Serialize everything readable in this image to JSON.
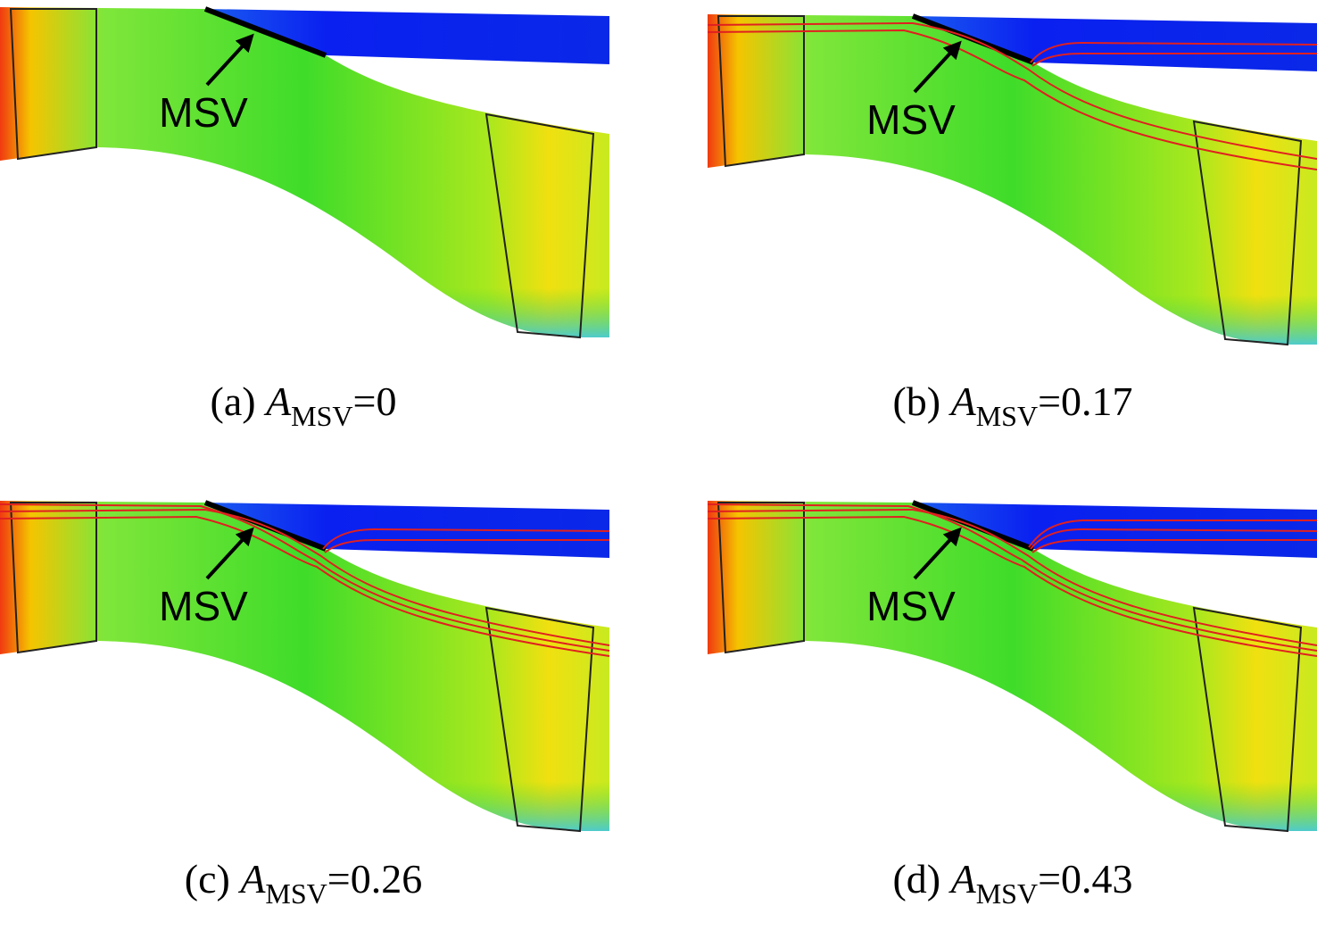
{
  "panels": [
    {
      "caption": {
        "prefix": "(a) ",
        "symbol": "A",
        "subscript": "MSV",
        "suffix": "=0"
      },
      "annotation": "MSV"
    },
    {
      "caption": {
        "prefix": "(b) ",
        "symbol": "A",
        "subscript": "MSV",
        "suffix": "=0.17"
      },
      "annotation": "MSV"
    },
    {
      "caption": {
        "prefix": "(c) ",
        "symbol": "A",
        "subscript": "MSV",
        "suffix": "=0.26"
      },
      "annotation": "MSV"
    },
    {
      "caption": {
        "prefix": "(d) ",
        "symbol": "A",
        "subscript": "MSV",
        "suffix": "=0.43"
      },
      "annotation": "MSV"
    }
  ]
}
